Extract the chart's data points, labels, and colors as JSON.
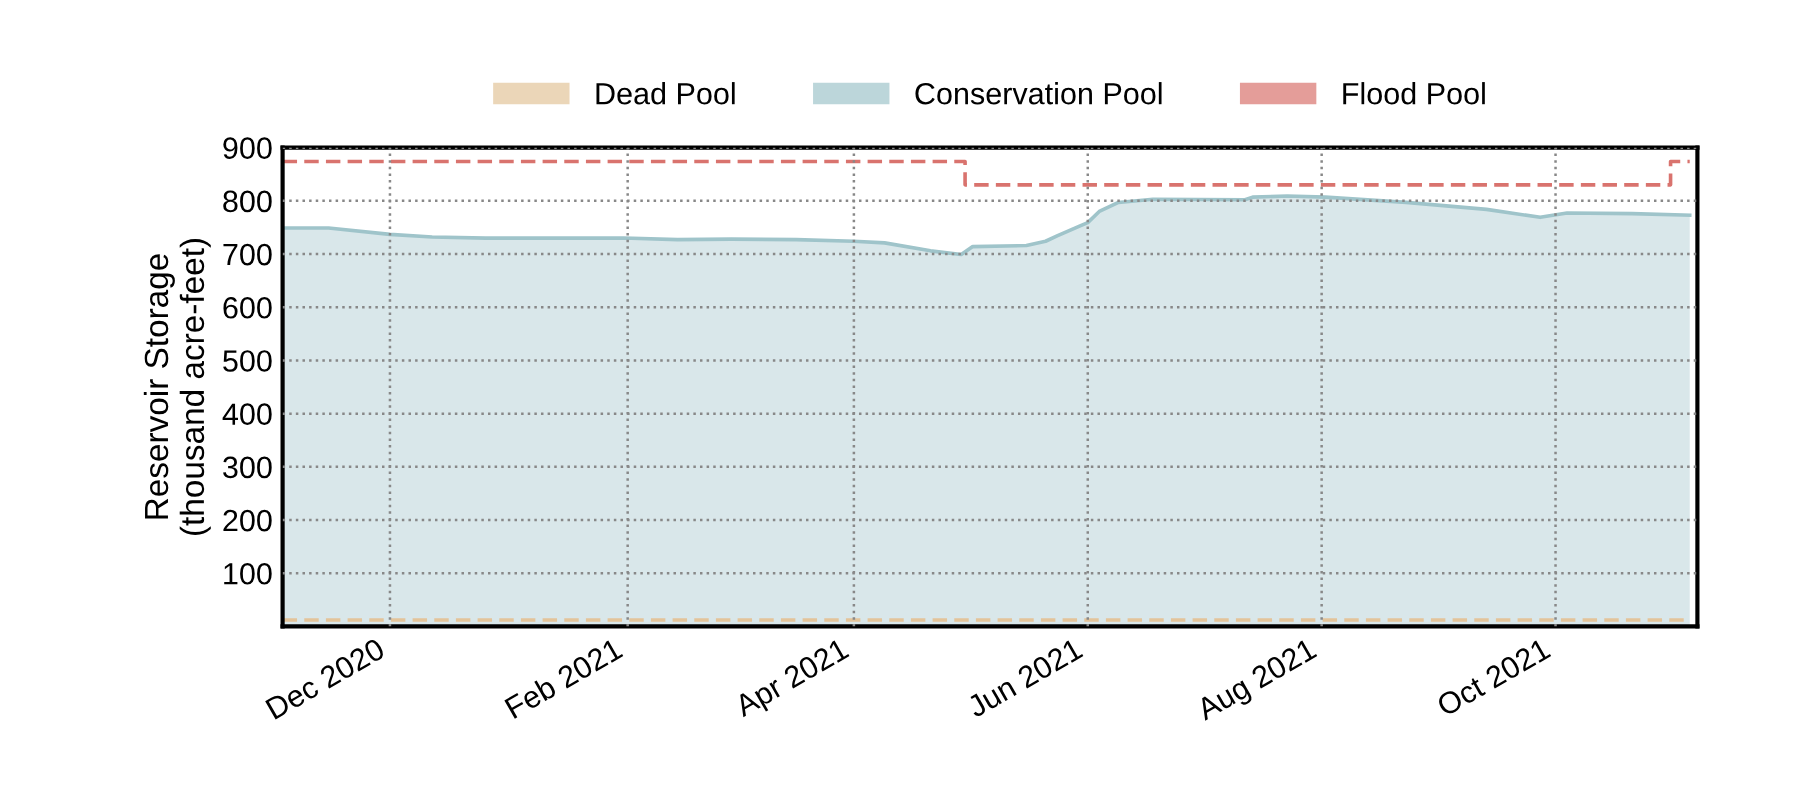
{
  "chart_data": {
    "type": "area",
    "ylabel": "Reservoir Storage\n(thousand acre-feet)",
    "series": [
      {
        "name": "Dead Pool",
        "type": "line",
        "color": "#e3c49a",
        "line_style": "dashed",
        "x": [
          "2020-11-03",
          "2021-11-05"
        ],
        "values": [
          12,
          12
        ]
      },
      {
        "name": "Conservation Pool",
        "color": "#9fc4ca",
        "line_style": "solid",
        "x": [
          "2020-11-03",
          "2020-11-15",
          "2020-12-01",
          "2020-12-12",
          "2020-12-26",
          "2021-01-31",
          "2021-02-14",
          "2021-02-28",
          "2021-03-17",
          "2021-04-01",
          "2021-04-09",
          "2021-04-21",
          "2021-04-29",
          "2021-05-02",
          "2021-05-16",
          "2021-05-21",
          "2021-05-24",
          "2021-05-30",
          "2021-06-01",
          "2021-06-04",
          "2021-06-09",
          "2021-06-18",
          "2021-07-12",
          "2021-07-14",
          "2021-07-23",
          "2021-08-02",
          "2021-08-23",
          "2021-09-13",
          "2021-09-27",
          "2021-10-04",
          "2021-10-21",
          "2021-11-05"
        ],
        "values": [
          749,
          749,
          737,
          732,
          730,
          730,
          727,
          728,
          727,
          724,
          721,
          706,
          699,
          714,
          716,
          724,
          734,
          753,
          759,
          780,
          797,
          803,
          802,
          807,
          809,
          807,
          797,
          784,
          769,
          777,
          776,
          773
        ]
      },
      {
        "name": "Flood Pool",
        "type": "step",
        "color": "#d9736e",
        "line_style": "dashed",
        "x": [
          "2020-11-03",
          "2021-04-30",
          "2021-10-31",
          "2021-11-05"
        ],
        "values": [
          874,
          830,
          874,
          874
        ]
      }
    ],
    "xlim": [
      "2020-11-03",
      "2021-11-07"
    ],
    "xticks": [
      {
        "value": "2020-12-01",
        "label": "Dec 2020"
      },
      {
        "value": "2021-02-01",
        "label": "Feb 2021"
      },
      {
        "value": "2021-04-01",
        "label": "Apr 2021"
      },
      {
        "value": "2021-06-01",
        "label": "Jun 2021"
      },
      {
        "value": "2021-08-01",
        "label": "Aug 2021"
      },
      {
        "value": "2021-10-01",
        "label": "Oct 2021"
      }
    ],
    "ylim": [
      0,
      900
    ],
    "yticks": [
      100,
      200,
      300,
      400,
      500,
      600,
      700,
      800,
      900
    ],
    "grid": true,
    "legend": "top",
    "marker": "none"
  }
}
